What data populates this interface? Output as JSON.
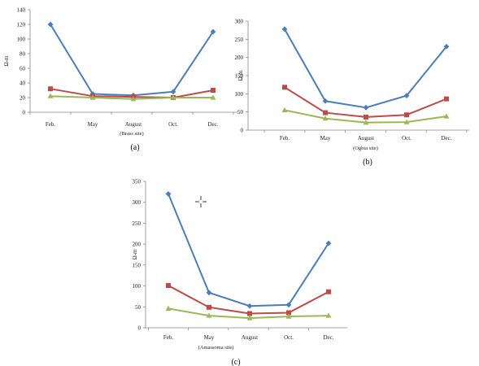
{
  "colors": {
    "series_1": "#4a7ebb",
    "series_2": "#be4b48",
    "series_3": "#98b954",
    "axis": "#888888"
  },
  "cursor_icon": "crosshair-cursor-icon",
  "chart_data": [
    {
      "type": "line",
      "panel_label": "(a)",
      "site_label": "(Brass site)",
      "ylabel": "Ω-m",
      "categories": [
        "Feb.",
        "May",
        "August",
        "Oct.",
        "Dec."
      ],
      "ylim": [
        0,
        140
      ],
      "yticks": [
        0,
        20,
        40,
        60,
        80,
        100,
        120,
        140
      ],
      "series": [
        {
          "marker": "diamond",
          "color": "#4a7ebb",
          "values": [
            120,
            25,
            23,
            28,
            110
          ]
        },
        {
          "marker": "square",
          "color": "#be4b48",
          "values": [
            32,
            22,
            21,
            20,
            30
          ]
        },
        {
          "marker": "triangle",
          "color": "#98b954",
          "values": [
            22,
            20,
            18,
            20,
            20
          ]
        }
      ],
      "grid": false
    },
    {
      "type": "line",
      "panel_label": "(b)",
      "site_label": "(Ogbia site)",
      "ylabel": "Ω-m",
      "categories": [
        "Feb.",
        "May",
        "August",
        "Oct.",
        "Dec."
      ],
      "ylim": [
        0,
        300
      ],
      "yticks": [
        0,
        50,
        100,
        150,
        200,
        250,
        300
      ],
      "series": [
        {
          "marker": "diamond",
          "color": "#4a7ebb",
          "values": [
            278,
            80,
            62,
            95,
            230
          ]
        },
        {
          "marker": "square",
          "color": "#be4b48",
          "values": [
            118,
            48,
            36,
            42,
            86
          ]
        },
        {
          "marker": "triangle",
          "color": "#98b954",
          "values": [
            55,
            32,
            21,
            22,
            38
          ]
        }
      ],
      "grid": false
    },
    {
      "type": "line",
      "panel_label": "(c)",
      "site_label": "(Amassoma site)",
      "ylabel": "Ω-m",
      "categories": [
        "Feb.",
        "May",
        "August",
        "Oct.",
        "Dec."
      ],
      "ylim": [
        0,
        350
      ],
      "yticks": [
        0,
        50,
        100,
        150,
        200,
        250,
        300,
        350
      ],
      "series": [
        {
          "marker": "diamond",
          "color": "#4a7ebb",
          "values": [
            320,
            84,
            52,
            55,
            202
          ]
        },
        {
          "marker": "square",
          "color": "#be4b48",
          "values": [
            101,
            49,
            34,
            36,
            86
          ]
        },
        {
          "marker": "triangle",
          "color": "#98b954",
          "values": [
            46,
            29,
            23,
            27,
            29
          ]
        }
      ],
      "grid": false
    }
  ]
}
